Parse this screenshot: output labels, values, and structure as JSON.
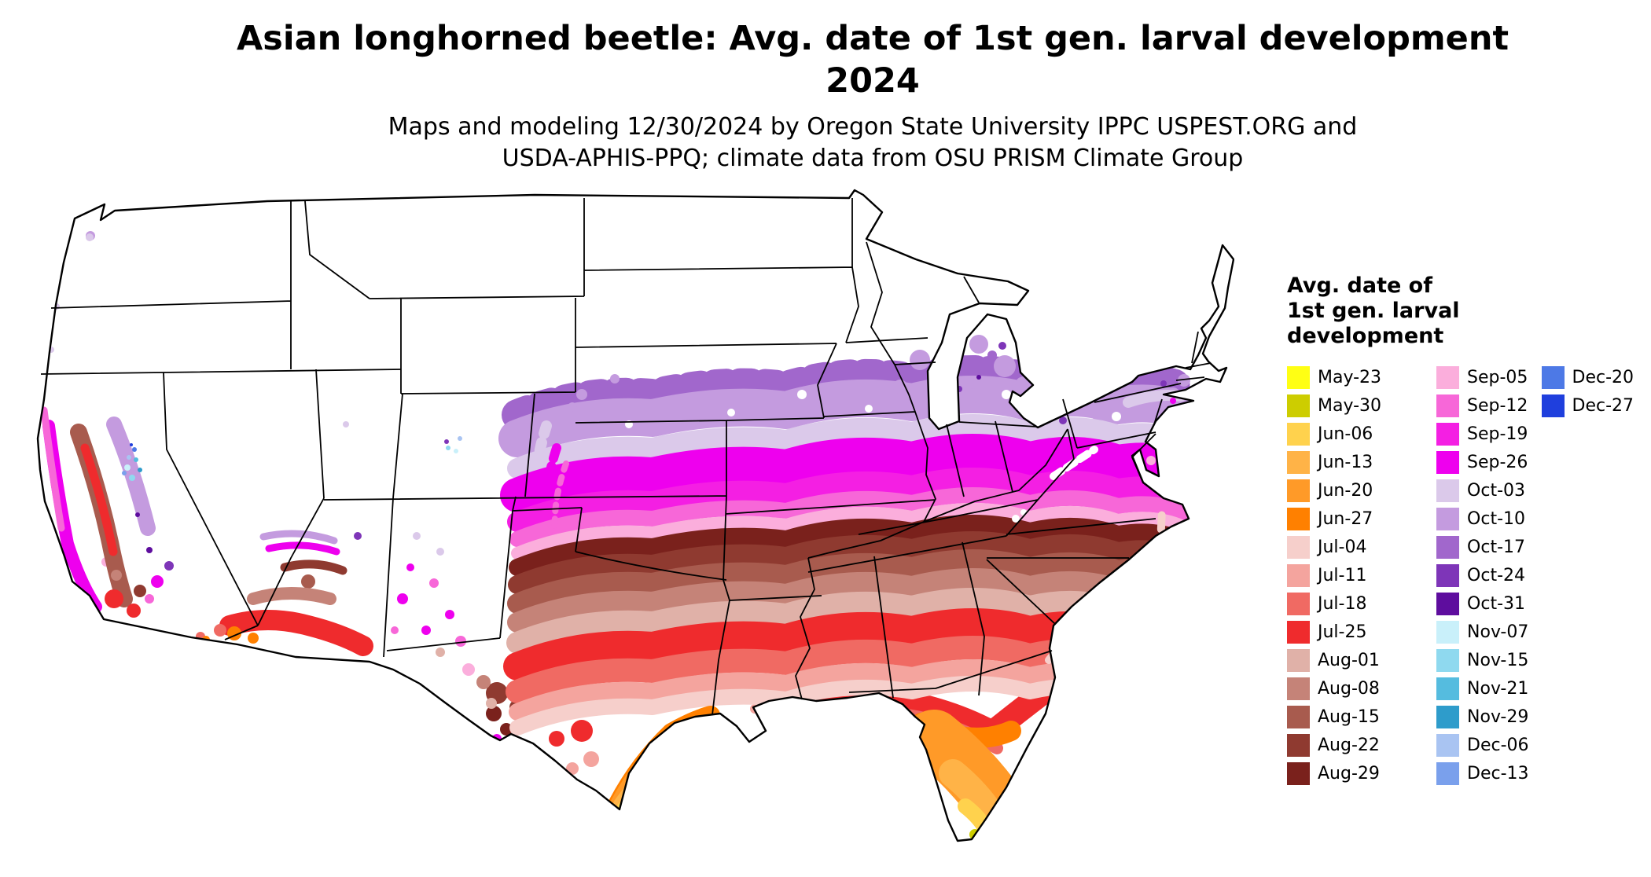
{
  "header": {
    "title_line1": "Asian longhorned beetle: Avg. date of 1st gen. larval development",
    "title_line2": "2024",
    "subtitle_line1": "Maps and modeling 12/30/2024 by Oregon State University IPPC USPEST.ORG and",
    "subtitle_line2": "USDA-APHIS-PPQ; climate data from OSU PRISM Climate Group"
  },
  "map": {
    "label": "Contiguous United States"
  },
  "legend": {
    "title": "Avg. date of\n1st gen. larval\ndevelopment",
    "columns": [
      [
        "May-23",
        "May-30",
        "Jun-06",
        "Jun-13",
        "Jun-20",
        "Jun-27",
        "Jul-04",
        "Jul-11",
        "Jul-18",
        "Jul-25",
        "Aug-01",
        "Aug-08",
        "Aug-15",
        "Aug-22",
        "Aug-29"
      ],
      [
        "Sep-05",
        "Sep-12",
        "Sep-19",
        "Sep-26",
        "Oct-03",
        "Oct-10",
        "Oct-17",
        "Oct-24",
        "Oct-31",
        "Nov-07",
        "Nov-15",
        "Nov-21",
        "Nov-29",
        "Dec-06",
        "Dec-13"
      ],
      [
        "Dec-20",
        "Dec-27"
      ]
    ]
  },
  "palette": {
    "May-23": "#FFFF14",
    "May-30": "#CDCD00",
    "Jun-06": "#FFD24D",
    "Jun-13": "#FFB347",
    "Jun-20": "#FF9A28",
    "Jun-27": "#FF8000",
    "Jul-04": "#F6CFCB",
    "Jul-11": "#F4A49E",
    "Jul-18": "#F06A63",
    "Jul-25": "#EF2B2D",
    "Aug-01": "#E0B1A8",
    "Aug-08": "#C58378",
    "Aug-15": "#A85B4E",
    "Aug-22": "#8F3A30",
    "Aug-29": "#7A211C",
    "Sep-05": "#FBAEDC",
    "Sep-12": "#F767D8",
    "Sep-19": "#F41FE3",
    "Sep-26": "#EE00EE",
    "Oct-03": "#DBC9EA",
    "Oct-10": "#C49BDF",
    "Oct-17": "#A167CC",
    "Oct-24": "#7E35B8",
    "Oct-31": "#5E0D9E",
    "Nov-07": "#C9F0FA",
    "Nov-15": "#8FD9EF",
    "Nov-21": "#55BCDF",
    "Nov-29": "#2E9CCB",
    "Dec-06": "#A9C4F2",
    "Dec-13": "#7AA0EC",
    "Dec-20": "#4D79E6",
    "Dec-27": "#1F3FDD"
  }
}
